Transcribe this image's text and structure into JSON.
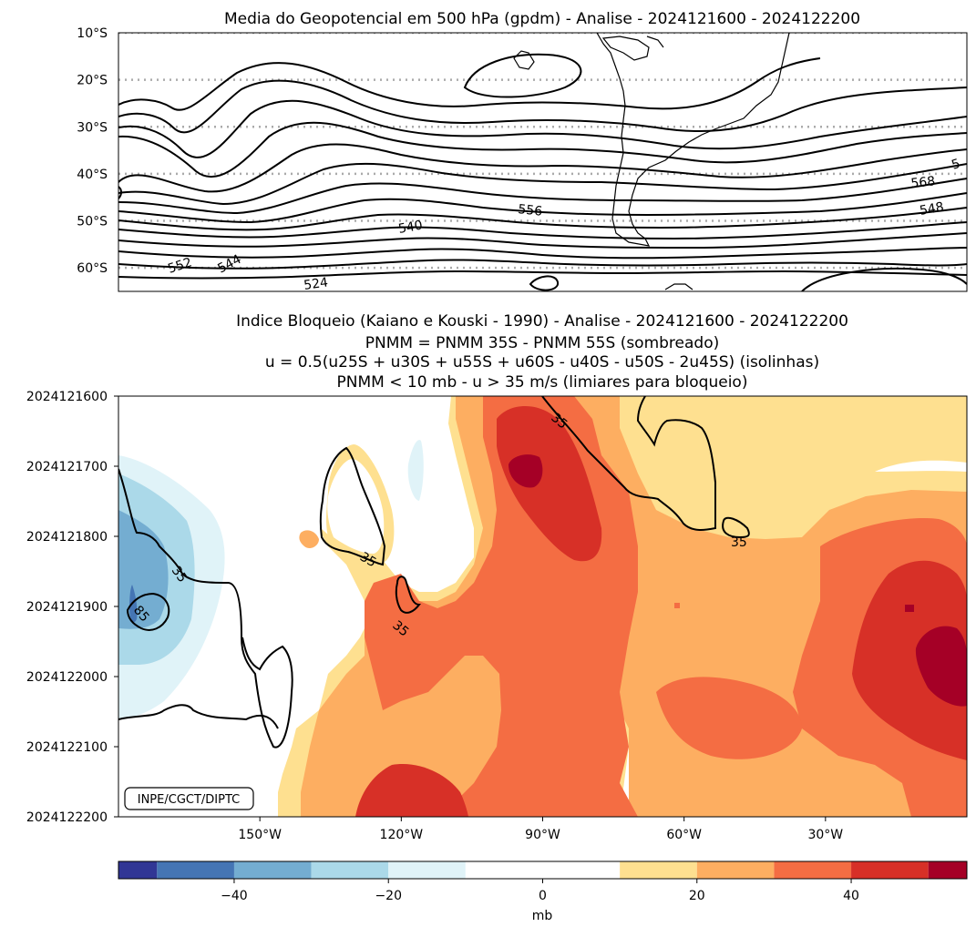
{
  "chart_data": [
    {
      "type": "contour",
      "title": "Media do Geopotencial em 500 hPa (gpdm) - Analise - 2024121600 - 2024122200",
      "ylim": [
        -65,
        -10
      ],
      "y_ticks": [
        "10°S",
        "20°S",
        "30°S",
        "40°S",
        "50°S",
        "60°S"
      ],
      "y_tick_values": [
        -10,
        -20,
        -30,
        -40,
        -50,
        -60
      ],
      "contour_labels": [
        "524",
        "540",
        "544",
        "552",
        "556",
        "568",
        "548",
        "5"
      ],
      "gridlines": "dotted gray (latitudes)",
      "coastline": "South America"
    },
    {
      "type": "heatmap",
      "title_lines": [
        "Indice Bloqueio (Kaiano e Kouski - 1990) - Analise - 2024121600 - 2024122200",
        "PNMM = PNMM 35S - PNMM 55S (sombreado)",
        "u = 0.5(u25S + u30S + u55S + u60S - u40S - u50S - 2u45S) (isolinhas)",
        "PNMM < 10 mb - u > 35 m/s (limiares para bloqueio)"
      ],
      "y_ticks": [
        "2024121600",
        "2024121700",
        "2024121800",
        "2024121900",
        "2024122000",
        "2024122100",
        "2024122200"
      ],
      "x_ticks": [
        "150°W",
        "120°W",
        "90°W",
        "60°W",
        "30°W"
      ],
      "x_tick_values": [
        -150,
        -120,
        -90,
        -60,
        -30
      ],
      "xlim": [
        -180,
        0
      ],
      "contour_labels": [
        "35",
        "35",
        "35",
        "35",
        "35",
        "85"
      ],
      "credit": "INPE/CGCT/DIPTC",
      "colorbar": {
        "label": "mb",
        "range": [
          -55,
          55
        ],
        "tick_labels": [
          "−40",
          "−20",
          "0",
          "20",
          "40"
        ],
        "tick_values": [
          -40,
          -20,
          0,
          20,
          40
        ],
        "levels": [
          -55,
          -50,
          -40,
          -30,
          -20,
          -10,
          10,
          20,
          30,
          40,
          50,
          55
        ],
        "colors": [
          "#313695",
          "#4575b4",
          "#74add1",
          "#abd9e9",
          "#e0f3f8",
          "#ffffff",
          "#fee090",
          "#fdae61",
          "#f46d43",
          "#d73027",
          "#a50026"
        ]
      }
    }
  ]
}
